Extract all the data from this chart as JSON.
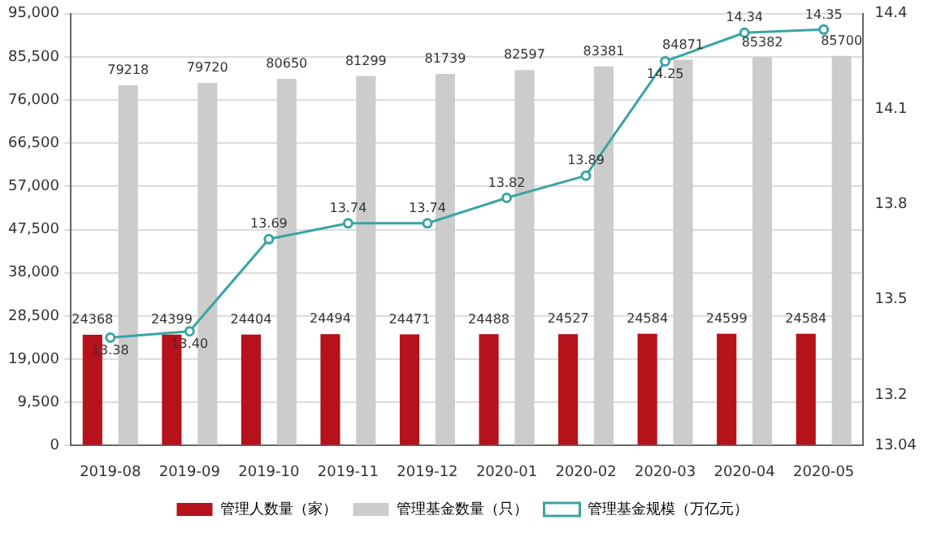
{
  "chart_data": {
    "type": "bar",
    "categories": [
      "2019-08",
      "2019-09",
      "2019-10",
      "2019-11",
      "2019-12",
      "2020-01",
      "2020-02",
      "2020-03",
      "2020-04",
      "2020-05"
    ],
    "series": [
      {
        "name": "管理人数量（家）",
        "color": "#b5121b",
        "values": [
          24368,
          24399,
          24404,
          24494,
          24471,
          24488,
          24527,
          24584,
          24599,
          24584
        ]
      },
      {
        "name": "管理基金数量（只）",
        "color": "#cccccc",
        "values": [
          79218,
          79720,
          80650,
          81299,
          81739,
          82597,
          83381,
          84871,
          85382,
          85700
        ]
      },
      {
        "name": "管理基金规模（万亿元）",
        "type": "line",
        "axis": "y2",
        "color": "#3aa4a4",
        "marker": "circle",
        "values": [
          13.38,
          13.4,
          13.69,
          13.74,
          13.74,
          13.82,
          13.89,
          14.25,
          14.34,
          14.35
        ],
        "value_labels": [
          "13.38",
          "13.40",
          "13.69",
          "13.74",
          "13.74",
          "13.82",
          "13.89",
          "14.25",
          "14.34",
          "14.35"
        ]
      }
    ],
    "ylim": [
      0,
      95000
    ],
    "yticks": [
      0,
      {
        "value": 9500,
        "label": "9,500"
      },
      {
        "value": 19000,
        "label": "19,000"
      },
      {
        "value": 28500,
        "label": "28,500"
      },
      {
        "value": 38000,
        "label": "38,000"
      },
      {
        "value": 47500,
        "label": "47,500"
      },
      {
        "value": 57000,
        "label": "57,000"
      },
      {
        "value": 66500,
        "label": "66,500"
      },
      {
        "value": 76000,
        "label": "76,000"
      },
      {
        "value": 85500,
        "label": "85,500"
      },
      {
        "value": 95000,
        "label": "95,000"
      }
    ],
    "y2lim": [
      13.04,
      14.4
    ],
    "y2ticks": [
      13.04,
      13.2,
      13.5,
      13.8,
      14.1,
      14.4
    ],
    "grid": "y",
    "legend": "bottom",
    "data_labels": true
  }
}
